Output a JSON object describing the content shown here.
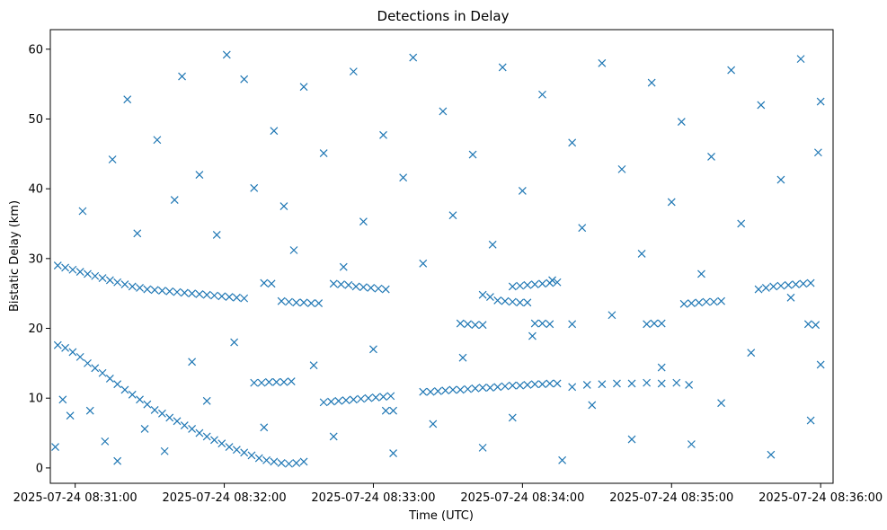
{
  "chart_data": {
    "type": "scatter",
    "title": "Detections in Delay",
    "xlabel": "Time (UTC)",
    "ylabel": "Bistatic Delay (km)",
    "x_start": "2025-07-24 08:30:50",
    "x_end": "2025-07-24 08:36:05",
    "x_ticks": [
      "2025-07-24 08:31:00",
      "2025-07-24 08:32:00",
      "2025-07-24 08:33:00",
      "2025-07-24 08:34:00",
      "2025-07-24 08:35:00",
      "2025-07-24 08:36:00"
    ],
    "ylim": [
      -2.2,
      62.8
    ],
    "y_ticks": [
      0,
      10,
      20,
      30,
      40,
      50,
      60
    ],
    "marker": "x",
    "color": "#1f77b4",
    "grid": false,
    "series": [
      {
        "points": [
          [
            "2025-07-24 08:30:53",
            17.6
          ],
          [
            "2025-07-24 08:30:56",
            17.2
          ],
          [
            "2025-07-24 08:30:59",
            16.6
          ],
          [
            "2025-07-24 08:31:02",
            15.9
          ],
          [
            "2025-07-24 08:31:05",
            15.0
          ],
          [
            "2025-07-24 08:31:08",
            14.3
          ],
          [
            "2025-07-24 08:31:11",
            13.6
          ],
          [
            "2025-07-24 08:31:14",
            12.8
          ],
          [
            "2025-07-24 08:31:17",
            12.0
          ],
          [
            "2025-07-24 08:31:20",
            11.2
          ],
          [
            "2025-07-24 08:31:23",
            10.5
          ],
          [
            "2025-07-24 08:31:26",
            9.8
          ],
          [
            "2025-07-24 08:31:29",
            9.1
          ],
          [
            "2025-07-24 08:31:32",
            8.3
          ],
          [
            "2025-07-24 08:31:35",
            7.8
          ],
          [
            "2025-07-24 08:31:38",
            7.2
          ],
          [
            "2025-07-24 08:31:41",
            6.7
          ],
          [
            "2025-07-24 08:31:44",
            6.1
          ],
          [
            "2025-07-24 08:31:47",
            5.6
          ],
          [
            "2025-07-24 08:31:50",
            5.0
          ],
          [
            "2025-07-24 08:31:53",
            4.5
          ],
          [
            "2025-07-24 08:31:56",
            4.0
          ],
          [
            "2025-07-24 08:31:59",
            3.5
          ],
          [
            "2025-07-24 08:32:02",
            3.0
          ],
          [
            "2025-07-24 08:32:05",
            2.6
          ],
          [
            "2025-07-24 08:32:08",
            2.2
          ],
          [
            "2025-07-24 08:32:11",
            1.8
          ],
          [
            "2025-07-24 08:32:14",
            1.4
          ],
          [
            "2025-07-24 08:32:17",
            1.1
          ],
          [
            "2025-07-24 08:32:20",
            0.9
          ],
          [
            "2025-07-24 08:32:23",
            0.7
          ],
          [
            "2025-07-24 08:32:26",
            0.6
          ],
          [
            "2025-07-24 08:32:29",
            0.7
          ],
          [
            "2025-07-24 08:32:32",
            0.9
          ],
          [
            "2025-07-24 08:30:53",
            29.0
          ],
          [
            "2025-07-24 08:30:56",
            28.7
          ],
          [
            "2025-07-24 08:30:59",
            28.4
          ],
          [
            "2025-07-24 08:31:02",
            28.1
          ],
          [
            "2025-07-24 08:31:05",
            27.8
          ],
          [
            "2025-07-24 08:31:08",
            27.5
          ],
          [
            "2025-07-24 08:31:11",
            27.2
          ],
          [
            "2025-07-24 08:31:14",
            26.9
          ],
          [
            "2025-07-24 08:31:17",
            26.6
          ],
          [
            "2025-07-24 08:31:20",
            26.3
          ],
          [
            "2025-07-24 08:31:23",
            26.0
          ],
          [
            "2025-07-24 08:31:26",
            25.8
          ],
          [
            "2025-07-24 08:31:29",
            25.6
          ],
          [
            "2025-07-24 08:31:32",
            25.5
          ],
          [
            "2025-07-24 08:31:35",
            25.4
          ],
          [
            "2025-07-24 08:31:38",
            25.3
          ],
          [
            "2025-07-24 08:31:41",
            25.2
          ],
          [
            "2025-07-24 08:31:44",
            25.1
          ],
          [
            "2025-07-24 08:31:47",
            25.0
          ],
          [
            "2025-07-24 08:31:50",
            24.9
          ],
          [
            "2025-07-24 08:31:53",
            24.8
          ],
          [
            "2025-07-24 08:31:56",
            24.7
          ],
          [
            "2025-07-24 08:31:59",
            24.6
          ],
          [
            "2025-07-24 08:32:02",
            24.5
          ],
          [
            "2025-07-24 08:32:05",
            24.4
          ],
          [
            "2025-07-24 08:32:08",
            24.3
          ],
          [
            "2025-07-24 08:32:16",
            26.5
          ],
          [
            "2025-07-24 08:32:19",
            26.4
          ],
          [
            "2025-07-24 08:32:23",
            23.9
          ],
          [
            "2025-07-24 08:32:26",
            23.8
          ],
          [
            "2025-07-24 08:32:29",
            23.7
          ],
          [
            "2025-07-24 08:32:32",
            23.7
          ],
          [
            "2025-07-24 08:32:35",
            23.6
          ],
          [
            "2025-07-24 08:32:38",
            23.6
          ],
          [
            "2025-07-24 08:32:44",
            26.4
          ],
          [
            "2025-07-24 08:32:47",
            26.3
          ],
          [
            "2025-07-24 08:32:50",
            26.2
          ],
          [
            "2025-07-24 08:32:53",
            26.0
          ],
          [
            "2025-07-24 08:32:56",
            25.9
          ],
          [
            "2025-07-24 08:32:59",
            25.8
          ],
          [
            "2025-07-24 08:33:02",
            25.7
          ],
          [
            "2025-07-24 08:33:05",
            25.6
          ],
          [
            "2025-07-24 08:32:12",
            12.2
          ],
          [
            "2025-07-24 08:32:15",
            12.2
          ],
          [
            "2025-07-24 08:32:18",
            12.3
          ],
          [
            "2025-07-24 08:32:21",
            12.3
          ],
          [
            "2025-07-24 08:32:24",
            12.3
          ],
          [
            "2025-07-24 08:32:27",
            12.4
          ],
          [
            "2025-07-24 08:32:40",
            9.4
          ],
          [
            "2025-07-24 08:32:43",
            9.5
          ],
          [
            "2025-07-24 08:32:46",
            9.6
          ],
          [
            "2025-07-24 08:32:49",
            9.7
          ],
          [
            "2025-07-24 08:32:52",
            9.8
          ],
          [
            "2025-07-24 08:32:55",
            9.9
          ],
          [
            "2025-07-24 08:32:58",
            10.0
          ],
          [
            "2025-07-24 08:33:01",
            10.1
          ],
          [
            "2025-07-24 08:33:04",
            10.2
          ],
          [
            "2025-07-24 08:33:07",
            10.3
          ],
          [
            "2025-07-24 08:33:05",
            8.2
          ],
          [
            "2025-07-24 08:33:08",
            8.2
          ],
          [
            "2025-07-24 08:33:20",
            10.9
          ],
          [
            "2025-07-24 08:33:23",
            10.9
          ],
          [
            "2025-07-24 08:33:26",
            11.0
          ],
          [
            "2025-07-24 08:33:29",
            11.1
          ],
          [
            "2025-07-24 08:33:32",
            11.2
          ],
          [
            "2025-07-24 08:33:35",
            11.2
          ],
          [
            "2025-07-24 08:33:38",
            11.3
          ],
          [
            "2025-07-24 08:33:41",
            11.4
          ],
          [
            "2025-07-24 08:33:44",
            11.5
          ],
          [
            "2025-07-24 08:33:47",
            11.5
          ],
          [
            "2025-07-24 08:33:50",
            11.6
          ],
          [
            "2025-07-24 08:33:53",
            11.7
          ],
          [
            "2025-07-24 08:33:56",
            11.8
          ],
          [
            "2025-07-24 08:33:59",
            11.8
          ],
          [
            "2025-07-24 08:34:02",
            11.9
          ],
          [
            "2025-07-24 08:34:05",
            12.0
          ],
          [
            "2025-07-24 08:34:08",
            12.0
          ],
          [
            "2025-07-24 08:34:11",
            12.1
          ],
          [
            "2025-07-24 08:34:14",
            12.1
          ],
          [
            "2025-07-24 08:34:20",
            11.6
          ],
          [
            "2025-07-24 08:34:26",
            11.9
          ],
          [
            "2025-07-24 08:34:32",
            12.0
          ],
          [
            "2025-07-24 08:34:38",
            12.1
          ],
          [
            "2025-07-24 08:34:44",
            12.1
          ],
          [
            "2025-07-24 08:34:50",
            12.2
          ],
          [
            "2025-07-24 08:34:56",
            12.1
          ],
          [
            "2025-07-24 08:35:02",
            12.2
          ],
          [
            "2025-07-24 08:35:07",
            11.9
          ],
          [
            "2025-07-24 08:33:35",
            20.7
          ],
          [
            "2025-07-24 08:33:38",
            20.6
          ],
          [
            "2025-07-24 08:33:41",
            20.5
          ],
          [
            "2025-07-24 08:33:44",
            20.5
          ],
          [
            "2025-07-24 08:34:05",
            20.7
          ],
          [
            "2025-07-24 08:34:08",
            20.7
          ],
          [
            "2025-07-24 08:34:11",
            20.6
          ],
          [
            "2025-07-24 08:34:20",
            20.6
          ],
          [
            "2025-07-24 08:34:50",
            20.6
          ],
          [
            "2025-07-24 08:34:53",
            20.7
          ],
          [
            "2025-07-24 08:34:56",
            20.7
          ],
          [
            "2025-07-24 08:35:55",
            20.6
          ],
          [
            "2025-07-24 08:35:58",
            20.5
          ],
          [
            "2025-07-24 08:33:44",
            24.8
          ],
          [
            "2025-07-24 08:33:47",
            24.5
          ],
          [
            "2025-07-24 08:33:50",
            24.0
          ],
          [
            "2025-07-24 08:33:53",
            23.9
          ],
          [
            "2025-07-24 08:33:56",
            23.8
          ],
          [
            "2025-07-24 08:33:59",
            23.7
          ],
          [
            "2025-07-24 08:34:02",
            23.7
          ],
          [
            "2025-07-24 08:33:56",
            26.0
          ],
          [
            "2025-07-24 08:33:59",
            26.1
          ],
          [
            "2025-07-24 08:34:02",
            26.2
          ],
          [
            "2025-07-24 08:34:05",
            26.3
          ],
          [
            "2025-07-24 08:34:08",
            26.4
          ],
          [
            "2025-07-24 08:34:11",
            26.5
          ],
          [
            "2025-07-24 08:34:14",
            26.6
          ],
          [
            "2025-07-24 08:35:05",
            23.5
          ],
          [
            "2025-07-24 08:35:08",
            23.6
          ],
          [
            "2025-07-24 08:35:11",
            23.7
          ],
          [
            "2025-07-24 08:35:14",
            23.8
          ],
          [
            "2025-07-24 08:35:17",
            23.8
          ],
          [
            "2025-07-24 08:35:20",
            23.9
          ],
          [
            "2025-07-24 08:35:35",
            25.6
          ],
          [
            "2025-07-24 08:35:38",
            25.8
          ],
          [
            "2025-07-24 08:35:41",
            26.0
          ],
          [
            "2025-07-24 08:35:44",
            26.1
          ],
          [
            "2025-07-24 08:35:47",
            26.2
          ],
          [
            "2025-07-24 08:35:50",
            26.3
          ],
          [
            "2025-07-24 08:35:53",
            26.4
          ],
          [
            "2025-07-24 08:35:56",
            26.5
          ],
          [
            "2025-07-24 08:30:52",
            3.0
          ],
          [
            "2025-07-24 08:30:55",
            9.8
          ],
          [
            "2025-07-24 08:30:58",
            7.5
          ],
          [
            "2025-07-24 08:31:03",
            36.8
          ],
          [
            "2025-07-24 08:31:06",
            8.2
          ],
          [
            "2025-07-24 08:31:12",
            3.8
          ],
          [
            "2025-07-24 08:31:15",
            44.2
          ],
          [
            "2025-07-24 08:31:17",
            1.0
          ],
          [
            "2025-07-24 08:31:21",
            52.8
          ],
          [
            "2025-07-24 08:31:25",
            33.6
          ],
          [
            "2025-07-24 08:31:28",
            5.6
          ],
          [
            "2025-07-24 08:31:33",
            47.0
          ],
          [
            "2025-07-24 08:31:36",
            2.4
          ],
          [
            "2025-07-24 08:31:40",
            38.4
          ],
          [
            "2025-07-24 08:31:43",
            56.1
          ],
          [
            "2025-07-24 08:31:47",
            15.2
          ],
          [
            "2025-07-24 08:31:50",
            42.0
          ],
          [
            "2025-07-24 08:31:53",
            9.6
          ],
          [
            "2025-07-24 08:31:57",
            33.4
          ],
          [
            "2025-07-24 08:32:01",
            59.2
          ],
          [
            "2025-07-24 08:32:04",
            18.0
          ],
          [
            "2025-07-24 08:32:08",
            55.7
          ],
          [
            "2025-07-24 08:32:12",
            40.1
          ],
          [
            "2025-07-24 08:32:16",
            5.8
          ],
          [
            "2025-07-24 08:32:20",
            48.3
          ],
          [
            "2025-07-24 08:32:24",
            37.5
          ],
          [
            "2025-07-24 08:32:28",
            31.2
          ],
          [
            "2025-07-24 08:32:32",
            54.6
          ],
          [
            "2025-07-24 08:32:36",
            14.7
          ],
          [
            "2025-07-24 08:32:40",
            45.1
          ],
          [
            "2025-07-24 08:32:44",
            4.5
          ],
          [
            "2025-07-24 08:32:48",
            28.8
          ],
          [
            "2025-07-24 08:32:52",
            56.8
          ],
          [
            "2025-07-24 08:32:56",
            35.3
          ],
          [
            "2025-07-24 08:33:00",
            17.0
          ],
          [
            "2025-07-24 08:33:04",
            47.7
          ],
          [
            "2025-07-24 08:33:08",
            2.1
          ],
          [
            "2025-07-24 08:33:12",
            41.6
          ],
          [
            "2025-07-24 08:33:16",
            58.8
          ],
          [
            "2025-07-24 08:33:20",
            29.3
          ],
          [
            "2025-07-24 08:33:24",
            6.3
          ],
          [
            "2025-07-24 08:33:28",
            51.1
          ],
          [
            "2025-07-24 08:33:32",
            36.2
          ],
          [
            "2025-07-24 08:33:36",
            15.8
          ],
          [
            "2025-07-24 08:33:40",
            44.9
          ],
          [
            "2025-07-24 08:33:44",
            2.9
          ],
          [
            "2025-07-24 08:33:48",
            32.0
          ],
          [
            "2025-07-24 08:33:52",
            57.4
          ],
          [
            "2025-07-24 08:33:56",
            7.2
          ],
          [
            "2025-07-24 08:34:00",
            39.7
          ],
          [
            "2025-07-24 08:34:04",
            18.9
          ],
          [
            "2025-07-24 08:34:08",
            53.5
          ],
          [
            "2025-07-24 08:34:12",
            26.9
          ],
          [
            "2025-07-24 08:34:16",
            1.1
          ],
          [
            "2025-07-24 08:34:20",
            46.6
          ],
          [
            "2025-07-24 08:34:24",
            34.4
          ],
          [
            "2025-07-24 08:34:28",
            9.0
          ],
          [
            "2025-07-24 08:34:32",
            58.0
          ],
          [
            "2025-07-24 08:34:36",
            21.9
          ],
          [
            "2025-07-24 08:34:40",
            42.8
          ],
          [
            "2025-07-24 08:34:44",
            4.1
          ],
          [
            "2025-07-24 08:34:48",
            30.7
          ],
          [
            "2025-07-24 08:34:52",
            55.2
          ],
          [
            "2025-07-24 08:34:56",
            14.4
          ],
          [
            "2025-07-24 08:35:00",
            38.1
          ],
          [
            "2025-07-24 08:35:04",
            49.6
          ],
          [
            "2025-07-24 08:35:08",
            3.4
          ],
          [
            "2025-07-24 08:35:12",
            27.8
          ],
          [
            "2025-07-24 08:35:16",
            44.6
          ],
          [
            "2025-07-24 08:35:20",
            9.3
          ],
          [
            "2025-07-24 08:35:24",
            57.0
          ],
          [
            "2025-07-24 08:35:28",
            35.0
          ],
          [
            "2025-07-24 08:35:32",
            16.5
          ],
          [
            "2025-07-24 08:35:36",
            52.0
          ],
          [
            "2025-07-24 08:35:40",
            1.9
          ],
          [
            "2025-07-24 08:35:44",
            41.3
          ],
          [
            "2025-07-24 08:35:48",
            24.4
          ],
          [
            "2025-07-24 08:35:52",
            58.6
          ],
          [
            "2025-07-24 08:35:56",
            6.8
          ],
          [
            "2025-07-24 08:35:59",
            45.2
          ],
          [
            "2025-07-24 08:36:00",
            14.8
          ],
          [
            "2025-07-24 08:36:00",
            52.5
          ]
        ]
      }
    ]
  }
}
